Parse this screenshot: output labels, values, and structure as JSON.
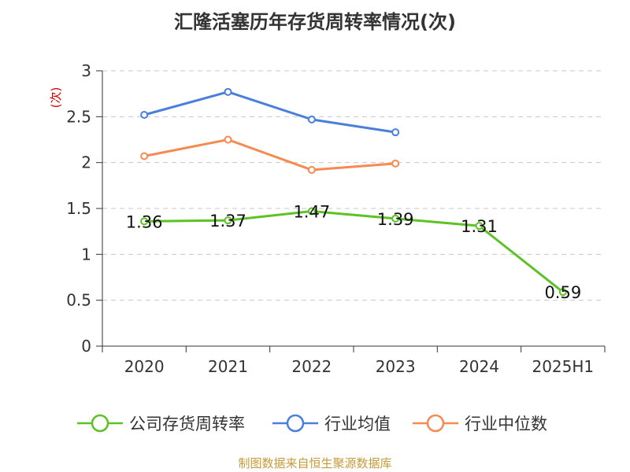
{
  "title": "汇隆活塞历年存货周转率情况(次)",
  "source_note": "制图数据来自恒生聚源数据库",
  "chart_data": {
    "type": "line",
    "title": "汇隆活塞历年存货周转率情况(次)",
    "ylabel": "(次)",
    "xlabel": "",
    "categories": [
      "2020",
      "2021",
      "2022",
      "2023",
      "2024",
      "2025H1"
    ],
    "ylim": [
      0,
      3
    ],
    "yticks": [
      0,
      0.5,
      1,
      1.5,
      2,
      2.5,
      3
    ],
    "ytick_labels": [
      "0",
      "0.5",
      "1",
      "1.5",
      "2",
      "2.5",
      "3"
    ],
    "grid": true,
    "legend_position": "bottom",
    "series": [
      {
        "name": "公司存货周转率",
        "color": "#5cc225",
        "values": [
          1.36,
          1.37,
          1.47,
          1.39,
          1.31,
          0.59
        ],
        "data_labels": [
          "1.36",
          "1.37",
          "1.47",
          "1.39",
          "1.31",
          "0.59"
        ]
      },
      {
        "name": "行业均值",
        "color": "#4a7fdc",
        "values": [
          2.52,
          2.77,
          2.47,
          2.33,
          null,
          null
        ]
      },
      {
        "name": "行业中位数",
        "color": "#f58a52",
        "values": [
          2.07,
          2.25,
          1.92,
          1.99,
          null,
          null
        ]
      }
    ]
  }
}
